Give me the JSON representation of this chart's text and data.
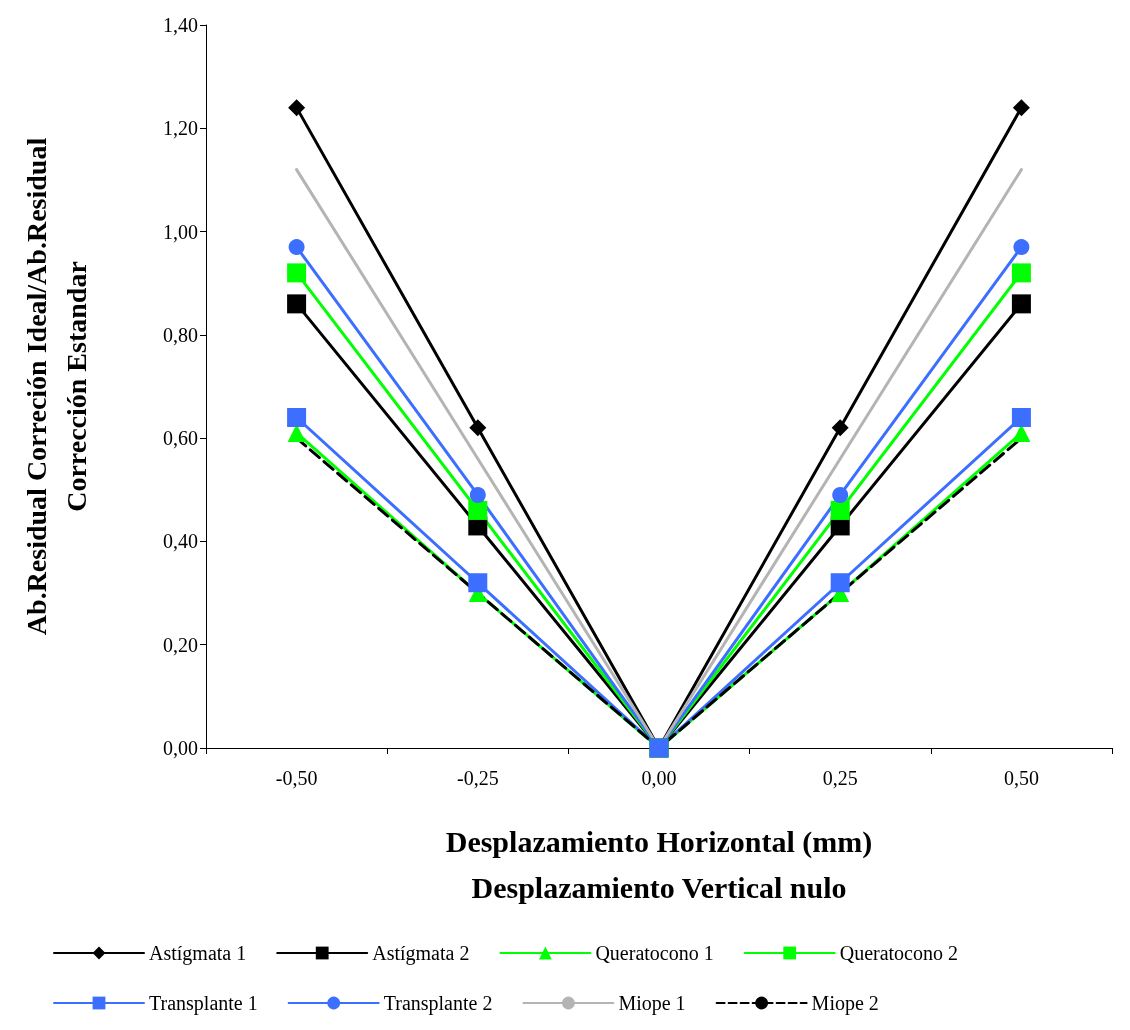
{
  "chart_data": {
    "type": "line",
    "xlabel": "Desplazamiento Horizontal (mm)\nDesplazamiento Vertical nulo",
    "ylabel": "Ab.Residual Correción Ideal/Ab.Residual\nCorrección Estandar",
    "categories": [
      "-0,50",
      "-0,25",
      "0,00",
      "0,25",
      "0,50"
    ],
    "ylim": [
      0,
      1.4
    ],
    "yticks": [
      {
        "value": 0,
        "label": "0,00"
      },
      {
        "value": 0.2,
        "label": "0,20"
      },
      {
        "value": 0.4,
        "label": "0,40"
      },
      {
        "value": 0.6,
        "label": "0,60"
      },
      {
        "value": 0.8,
        "label": "0,80"
      },
      {
        "value": 1.0,
        "label": "1,00"
      },
      {
        "value": 1.2,
        "label": "1,20"
      },
      {
        "value": 1.4,
        "label": "1,40"
      }
    ],
    "grid": false,
    "legend": "bottom",
    "line_style": "solid",
    "series": [
      {
        "name": "Astígmata 1",
        "color": "#000000",
        "marker": "diamond",
        "values": [
          1.24,
          0.62,
          0,
          0.62,
          1.24
        ]
      },
      {
        "name": "Astígmata 2",
        "color": "#000000",
        "marker": "square",
        "values": [
          0.86,
          0.43,
          0,
          0.43,
          0.86
        ]
      },
      {
        "name": "Queratocono 1",
        "color": "#00ff00",
        "marker": "triangle",
        "values": [
          0.61,
          0.3,
          0,
          0.3,
          0.61
        ]
      },
      {
        "name": "Queratocono 2",
        "color": "#00ff00",
        "marker": "square",
        "values": [
          0.92,
          0.46,
          0,
          0.46,
          0.92
        ]
      },
      {
        "name": "Transplante 1",
        "color": "#3c6eff",
        "marker": "square",
        "values": [
          0.64,
          0.32,
          0,
          0.32,
          0.64
        ]
      },
      {
        "name": "Transplante 2",
        "color": "#3c6eff",
        "marker": "circle",
        "values": [
          0.97,
          0.49,
          0,
          0.49,
          0.97
        ]
      },
      {
        "name": "Miope 1",
        "color": "#b4b4b4",
        "marker": "none",
        "values": [
          1.12,
          0.56,
          0,
          0.56,
          1.12
        ]
      },
      {
        "name": "Miope 2",
        "color": "#000000",
        "marker": "none",
        "line_style": "dashed",
        "values": [
          0.6,
          0.3,
          0,
          0.3,
          0.6
        ]
      }
    ]
  }
}
